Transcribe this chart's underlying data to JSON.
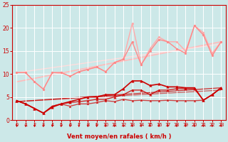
{
  "background_color": "#cce8e8",
  "grid_color": "#ffffff",
  "xlabel": "Vent moyen/en rafales ( km/h )",
  "xlabel_color": "#cc0000",
  "tick_color": "#cc0000",
  "xlim": [
    -0.5,
    23.5
  ],
  "ylim": [
    0,
    25
  ],
  "yticks": [
    0,
    5,
    10,
    15,
    20,
    25
  ],
  "xticks": [
    0,
    1,
    2,
    3,
    4,
    5,
    6,
    7,
    8,
    9,
    10,
    11,
    12,
    13,
    14,
    15,
    16,
    17,
    18,
    19,
    20,
    21,
    22,
    23
  ],
  "lines": [
    {
      "x": [
        0,
        1,
        2,
        3,
        4,
        5,
        6,
        7,
        8,
        9,
        10,
        11,
        12,
        13,
        14,
        15,
        16,
        17,
        18,
        19,
        20,
        21,
        22,
        23
      ],
      "y": [
        10.3,
        10.3,
        8.3,
        6.7,
        10.3,
        10.3,
        9.5,
        10.5,
        11.0,
        11.5,
        10.5,
        12.5,
        13.2,
        21.0,
        12.0,
        15.5,
        18.0,
        17.0,
        17.0,
        15.0,
        20.5,
        19.0,
        14.5,
        17.0
      ],
      "color": "#ffaaaa",
      "lw": 1.0,
      "marker": "o",
      "ms": 2.0,
      "alpha": 1.0,
      "zorder": 2
    },
    {
      "x": [
        0,
        1,
        2,
        3,
        4,
        5,
        6,
        7,
        8,
        9,
        10,
        11,
        12,
        13,
        14,
        15,
        16,
        17,
        18,
        19,
        20,
        21,
        22,
        23
      ],
      "y": [
        10.3,
        10.3,
        8.3,
        6.7,
        10.3,
        10.3,
        9.5,
        10.5,
        11.0,
        11.5,
        10.5,
        12.5,
        13.2,
        17.0,
        12.0,
        15.0,
        17.5,
        17.0,
        15.5,
        14.5,
        20.5,
        18.5,
        14.0,
        17.0
      ],
      "color": "#ff8888",
      "lw": 1.0,
      "marker": "o",
      "ms": 2.0,
      "alpha": 1.0,
      "zorder": 2
    },
    {
      "x": [
        0,
        23
      ],
      "y": [
        8.3,
        17.0
      ],
      "color": "#ffbbbb",
      "lw": 1.2,
      "marker": null,
      "ms": 0,
      "alpha": 1.0,
      "zorder": 1
    },
    {
      "x": [
        0,
        23
      ],
      "y": [
        10.3,
        16.5
      ],
      "color": "#ffdddd",
      "lw": 1.0,
      "marker": null,
      "ms": 0,
      "alpha": 1.0,
      "zorder": 1
    },
    {
      "x": [
        0,
        1,
        2,
        3,
        4,
        5,
        6,
        7,
        8,
        9,
        10,
        11,
        12,
        13,
        14,
        15,
        16,
        17,
        18,
        19,
        20,
        21,
        22,
        23
      ],
      "y": [
        4.2,
        3.5,
        2.5,
        1.5,
        2.8,
        3.5,
        4.0,
        4.5,
        5.0,
        5.0,
        5.5,
        5.5,
        6.8,
        8.5,
        8.5,
        7.5,
        7.8,
        7.2,
        7.2,
        7.0,
        7.0,
        4.3,
        5.5,
        7.0
      ],
      "color": "#cc0000",
      "lw": 1.2,
      "marker": "^",
      "ms": 2.5,
      "alpha": 1.0,
      "zorder": 4
    },
    {
      "x": [
        0,
        1,
        2,
        3,
        4,
        5,
        6,
        7,
        8,
        9,
        10,
        11,
        12,
        13,
        14,
        15,
        16,
        17,
        18,
        19,
        20,
        21,
        22,
        23
      ],
      "y": [
        4.2,
        3.5,
        2.5,
        1.5,
        3.0,
        3.5,
        3.8,
        4.0,
        4.2,
        4.5,
        4.5,
        5.0,
        5.5,
        6.5,
        6.5,
        5.5,
        6.5,
        6.5,
        6.8,
        6.8,
        6.8,
        4.3,
        5.5,
        7.0
      ],
      "color": "#cc0000",
      "lw": 1.0,
      "marker": "^",
      "ms": 2.5,
      "alpha": 0.85,
      "zorder": 3
    },
    {
      "x": [
        0,
        1,
        2,
        3,
        4,
        5,
        6,
        7,
        8,
        9,
        10,
        11,
        12,
        13,
        14,
        15,
        16,
        17,
        18,
        19,
        20,
        21,
        22,
        23
      ],
      "y": [
        4.2,
        3.5,
        2.5,
        1.5,
        3.0,
        3.5,
        3.0,
        3.5,
        3.5,
        3.8,
        4.2,
        4.0,
        4.5,
        4.2,
        4.3,
        4.2,
        4.2,
        4.3,
        4.2,
        4.2,
        4.2,
        4.3,
        5.5,
        7.0
      ],
      "color": "#cc0000",
      "lw": 1.0,
      "marker": "^",
      "ms": 2.0,
      "alpha": 0.7,
      "zorder": 3
    },
    {
      "x": [
        0,
        23
      ],
      "y": [
        4.0,
        7.0
      ],
      "color": "#cc0000",
      "lw": 0.9,
      "marker": null,
      "ms": 0,
      "alpha": 0.8,
      "zorder": 1
    },
    {
      "x": [
        0,
        23
      ],
      "y": [
        4.0,
        6.5
      ],
      "color": "#cc0000",
      "lw": 0.9,
      "marker": null,
      "ms": 0,
      "alpha": 0.6,
      "zorder": 1
    }
  ],
  "spine_color": "#cc0000",
  "figsize": [
    3.2,
    2.0
  ],
  "dpi": 100
}
